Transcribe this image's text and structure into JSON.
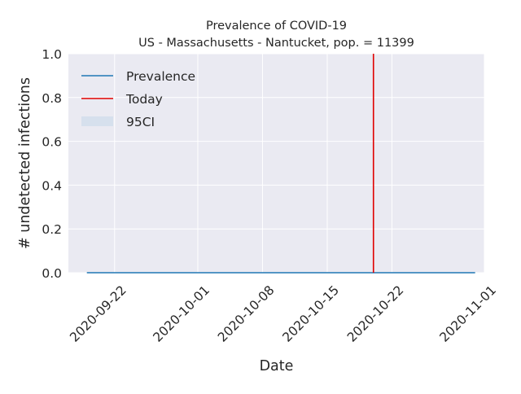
{
  "chart_data": {
    "type": "line",
    "title": "Prevalence of COVID-19",
    "subtitle": "US - Massachusetts - Nantucket, pop. = 11399",
    "xlabel": "Date",
    "ylabel": "# undetected infections",
    "ylim": [
      0,
      1
    ],
    "xlim": [
      "2020-09-17",
      "2020-11-01"
    ],
    "x_ticks": [
      "2020-09-22",
      "2020-10-01",
      "2020-10-08",
      "2020-10-15",
      "2020-10-22",
      "2020-11-01"
    ],
    "y_ticks": [
      "0.0",
      "0.2",
      "0.4",
      "0.6",
      "0.8",
      "1.0"
    ],
    "grid": true,
    "legend_placement": "top-left",
    "legend": [
      "Prevalence",
      "Today",
      "95CI"
    ],
    "series": [
      {
        "name": "Prevalence",
        "color": "#1f77b4",
        "x": [
          "2020-09-19",
          "2020-10-31"
        ],
        "y": [
          0,
          0
        ],
        "ci_lower": [
          0,
          0
        ],
        "ci_upper": [
          0,
          0
        ]
      }
    ],
    "today": {
      "label": "Today",
      "date": "2020-10-20",
      "color": "#e00000"
    },
    "ci_label": "95CI",
    "ci_color": "#d6e0ed",
    "background": "#eaeaf2"
  }
}
